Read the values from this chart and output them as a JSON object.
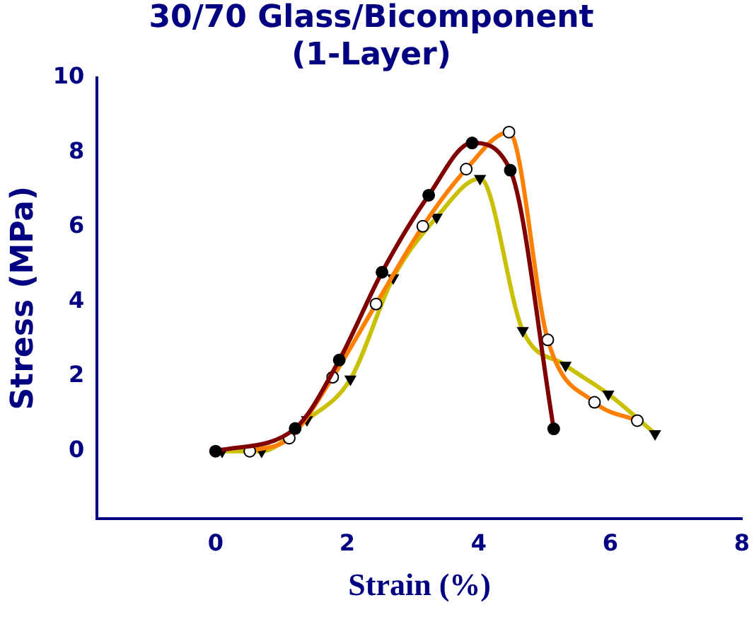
{
  "chart_data": {
    "type": "line",
    "title": "30/70 Glass/Bicomponent\n(1-Layer)",
    "xlabel": "Strain (%)",
    "ylabel": "Stress (MPa)",
    "xlim": [
      -1.8,
      8
    ],
    "xticks": [
      0,
      2,
      4,
      6,
      8
    ],
    "ylim": [
      -1.8,
      10
    ],
    "yticks": [
      0,
      2,
      4,
      6,
      8,
      10
    ],
    "grid": false,
    "legend": false,
    "series": [
      {
        "color": "#800000",
        "marker": "circle",
        "x": [
          0,
          1.21,
          1.88,
          2.53,
          3.24,
          3.9,
          4.48,
          5.14
        ],
        "values": [
          0,
          0.61,
          2.44,
          4.79,
          6.85,
          8.25,
          7.52,
          0.6
        ]
      },
      {
        "color": "#ff8000",
        "marker": "circle_open",
        "x": [
          0.52,
          1.12,
          1.78,
          2.44,
          3.15,
          3.81,
          4.46,
          5.05,
          5.76,
          6.41
        ],
        "values": [
          0,
          0.35,
          1.98,
          3.94,
          6.02,
          7.55,
          8.54,
          2.98,
          1.31,
          0.82
        ]
      },
      {
        "color": "#c8c000",
        "marker": "triangle_down",
        "x": [
          0.1,
          0.7,
          1.39,
          2.05,
          2.7,
          3.36,
          4.02,
          4.67,
          5.32,
          5.97,
          6.68
        ],
        "values": [
          0,
          0,
          0.84,
          1.93,
          4.64,
          6.26,
          7.3,
          3.23,
          2.3,
          1.53,
          0.47
        ]
      }
    ]
  }
}
